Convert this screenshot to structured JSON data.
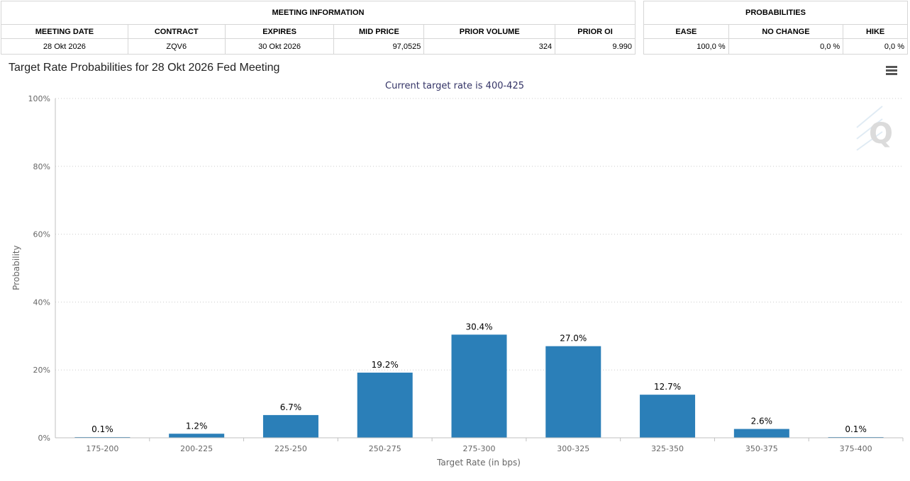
{
  "meeting_info": {
    "header": "MEETING INFORMATION",
    "columns": [
      "MEETING DATE",
      "CONTRACT",
      "EXPIRES",
      "MID PRICE",
      "PRIOR VOLUME",
      "PRIOR OI"
    ],
    "values": [
      "28 Okt 2026",
      "ZQV6",
      "30 Okt 2026",
      "97,0525",
      "324",
      "9.990"
    ]
  },
  "probabilities": {
    "header": "PROBABILITIES",
    "columns": [
      "EASE",
      "NO CHANGE",
      "HIKE"
    ],
    "values": [
      "100,0 %",
      "0,0 %",
      "0,0 %"
    ]
  },
  "menu_icon": "hamburger-menu-icon",
  "chart_data": {
    "type": "bar",
    "title": "Target Rate Probabilities for 28 Okt 2026 Fed Meeting",
    "subtitle": "Current target rate is 400-425",
    "xlabel": "Target Rate (in bps)",
    "ylabel": "Probability",
    "categories": [
      "175-200",
      "200-225",
      "225-250",
      "250-275",
      "275-300",
      "300-325",
      "325-350",
      "350-375",
      "375-400"
    ],
    "values": [
      0.1,
      1.2,
      6.7,
      19.2,
      30.4,
      27.0,
      12.7,
      2.6,
      0.1
    ],
    "data_labels": [
      "0.1%",
      "1.2%",
      "6.7%",
      "19.2%",
      "30.4%",
      "27.0%",
      "12.7%",
      "2.6%",
      "0.1%"
    ],
    "ylim": [
      0,
      100
    ],
    "yticks": [
      "0%",
      "20%",
      "40%",
      "60%",
      "80%",
      "100%"
    ],
    "ytick_values": [
      0,
      20,
      40,
      60,
      80,
      100
    ],
    "grid": true,
    "bar_color": "#2b7fb8"
  }
}
